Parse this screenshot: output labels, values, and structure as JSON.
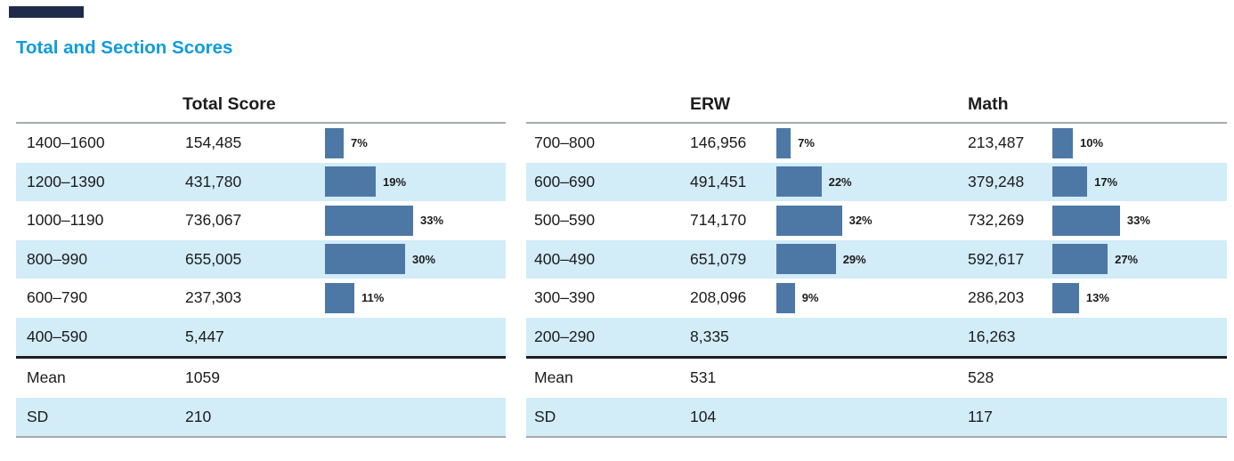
{
  "page": {
    "title": "Total and Section Scores"
  },
  "colors": {
    "title_blue": "#0e9cdb",
    "bar_blue": "#4d78a6",
    "row_band_blue": "#d2ecf8",
    "header_bar_navy": "#1f2b4a",
    "rule_gray": "#a7aaac",
    "separator_black": "#1d1f21"
  },
  "tables": {
    "total": {
      "header": "Total Score",
      "rows": [
        {
          "range": "1400–1600",
          "count": "154,485",
          "pct": 7,
          "pct_label": "7%"
        },
        {
          "range": "1200–1390",
          "count": "431,780",
          "pct": 19,
          "pct_label": "19%"
        },
        {
          "range": "1000–1190",
          "count": "736,067",
          "pct": 33,
          "pct_label": "33%"
        },
        {
          "range": "800–990",
          "count": "655,005",
          "pct": 30,
          "pct_label": "30%"
        },
        {
          "range": "600–790",
          "count": "237,303",
          "pct": 11,
          "pct_label": "11%"
        },
        {
          "range": "400–590",
          "count": "5,447",
          "pct": null,
          "pct_label": ""
        }
      ],
      "mean_label": "Mean",
      "mean": "1059",
      "sd_label": "SD",
      "sd": "210"
    },
    "sections": {
      "erw_header": "ERW",
      "math_header": "Math",
      "rows": [
        {
          "range": "700–800",
          "erw_count": "146,956",
          "erw_pct": 7,
          "erw_pct_label": "7%",
          "math_count": "213,487",
          "math_pct": 10,
          "math_pct_label": "10%"
        },
        {
          "range": "600–690",
          "erw_count": "491,451",
          "erw_pct": 22,
          "erw_pct_label": "22%",
          "math_count": "379,248",
          "math_pct": 17,
          "math_pct_label": "17%"
        },
        {
          "range": "500–590",
          "erw_count": "714,170",
          "erw_pct": 32,
          "erw_pct_label": "32%",
          "math_count": "732,269",
          "math_pct": 33,
          "math_pct_label": "33%"
        },
        {
          "range": "400–490",
          "erw_count": "651,079",
          "erw_pct": 29,
          "erw_pct_label": "29%",
          "math_count": "592,617",
          "math_pct": 27,
          "math_pct_label": "27%"
        },
        {
          "range": "300–390",
          "erw_count": "208,096",
          "erw_pct": 9,
          "erw_pct_label": "9%",
          "math_count": "286,203",
          "math_pct": 13,
          "math_pct_label": "13%"
        },
        {
          "range": "200–290",
          "erw_count": "8,335",
          "erw_pct": null,
          "erw_pct_label": "",
          "math_count": "16,263",
          "math_pct": null,
          "math_pct_label": ""
        }
      ],
      "mean_label": "Mean",
      "erw_mean": "531",
      "math_mean": "528",
      "sd_label": "SD",
      "erw_sd": "104",
      "math_sd": "117"
    }
  },
  "chart_data": [
    {
      "type": "table",
      "title": "Total Score",
      "categories": [
        "1400–1600",
        "1200–1390",
        "1000–1190",
        "800–990",
        "600–790",
        "400–590"
      ],
      "counts": [
        154485,
        431780,
        736067,
        655005,
        237303,
        5447
      ],
      "percent_values": [
        7,
        19,
        33,
        30,
        11,
        null
      ],
      "mean": 1059,
      "sd": 210,
      "notes": "inline horizontal bars depict percent of test takers per score band"
    },
    {
      "type": "table",
      "title": "ERW",
      "categories": [
        "700–800",
        "600–690",
        "500–590",
        "400–490",
        "300–390",
        "200–290"
      ],
      "counts": [
        146956,
        491451,
        714170,
        651079,
        208096,
        8335
      ],
      "percent_values": [
        7,
        22,
        32,
        29,
        9,
        null
      ],
      "mean": 531,
      "sd": 104
    },
    {
      "type": "table",
      "title": "Math",
      "categories": [
        "700–800",
        "600–690",
        "500–590",
        "400–490",
        "300–390",
        "200–290"
      ],
      "counts": [
        213487,
        379248,
        732269,
        592617,
        286203,
        16263
      ],
      "percent_values": [
        10,
        17,
        33,
        27,
        13,
        null
      ],
      "mean": 528,
      "sd": 117
    }
  ]
}
